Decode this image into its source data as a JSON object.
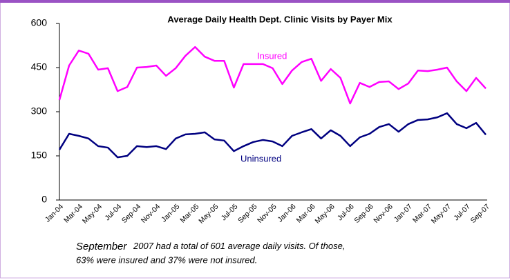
{
  "chart_data": {
    "type": "line",
    "title": "Average Daily Health Dept. Clinic Visits by Payer Mix",
    "categories": [
      "Jan-04",
      null,
      "Mar-04",
      null,
      "May-04",
      null,
      "Jul-04",
      null,
      "Sep-04",
      null,
      "Nov-04",
      null,
      "Jan-05",
      null,
      "Mar-05",
      null,
      "May-05",
      null,
      "Jul-05",
      null,
      "Sep-05",
      null,
      "Nov-05",
      null,
      "Jan-06",
      null,
      "Mar-06",
      null,
      "May-06",
      null,
      "Jul-06",
      null,
      "Sep-06",
      null,
      "Nov-06",
      null,
      "Jan-07",
      null,
      "Mar-07",
      null,
      "May-07",
      null,
      "Jul-07",
      null,
      "Sep-07"
    ],
    "series": [
      {
        "name": "Insured",
        "color": "#ff00ff",
        "values": [
          340,
          457,
          508,
          497,
          443,
          448,
          370,
          384,
          450,
          452,
          457,
          422,
          448,
          490,
          520,
          487,
          473,
          473,
          382,
          462,
          462,
          462,
          448,
          394,
          440,
          469,
          480,
          405,
          445,
          415,
          328,
          398,
          384,
          401,
          403,
          377,
          396,
          440,
          438,
          443,
          450,
          403,
          370,
          415,
          379
        ]
      },
      {
        "name": "Uninsured",
        "color": "#000080",
        "values": [
          171,
          225,
          218,
          209,
          183,
          178,
          145,
          150,
          183,
          180,
          183,
          173,
          209,
          223,
          225,
          230,
          206,
          202,
          166,
          183,
          197,
          204,
          199,
          183,
          218,
          230,
          241,
          209,
          237,
          218,
          183,
          213,
          225,
          248,
          258,
          232,
          258,
          272,
          274,
          281,
          295,
          258,
          244,
          262,
          222
        ]
      }
    ],
    "ylim": [
      0,
      600
    ],
    "yticks": [
      0,
      150,
      300,
      450,
      600
    ],
    "annotations": [
      "September",
      "2007 had a total of 601 average daily visits. Of those,",
      "63%  were insured and 37% were not insured."
    ]
  }
}
